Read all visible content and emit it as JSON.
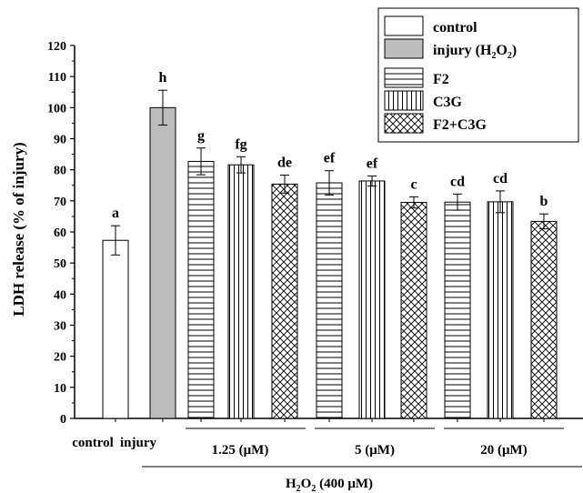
{
  "chart_data": {
    "type": "bar",
    "ylabel": "LDH release (% of injury)",
    "ylim": [
      0,
      120
    ],
    "yticks": [
      0,
      10,
      20,
      30,
      40,
      50,
      60,
      70,
      80,
      90,
      100,
      110,
      120
    ],
    "series_legend": [
      {
        "name": "control",
        "pattern": "none",
        "fill": "#ffffff"
      },
      {
        "name": "injury",
        "sub": "2",
        "name_suffix_open": " (H",
        "name_suffix_mid": "O",
        "name_suffix_close": ")",
        "pattern": "solid",
        "fill": "#bdbdbd"
      },
      {
        "name": "F2",
        "pattern": "horizontal",
        "fill": "#ffffff"
      },
      {
        "name": "C3G",
        "pattern": "vertical",
        "fill": "#ffffff"
      },
      {
        "name": "F2+C3G",
        "pattern": "crosshatch",
        "fill": "#ffffff"
      }
    ],
    "bars": [
      {
        "group": "control",
        "series": "control",
        "value": 57.3,
        "error": 4.7,
        "letter": "a"
      },
      {
        "group": "injury",
        "series": "injury",
        "value": 100,
        "error": 5.6,
        "letter": "h"
      },
      {
        "group": "1.25",
        "series": "F2",
        "value": 82.7,
        "error": 4.3,
        "letter": "g"
      },
      {
        "group": "1.25",
        "series": "C3G",
        "value": 81.6,
        "error": 2.6,
        "letter": "fg"
      },
      {
        "group": "1.25",
        "series": "F2+C3G",
        "value": 75.4,
        "error": 2.9,
        "letter": "de"
      },
      {
        "group": "5",
        "series": "F2",
        "value": 75.8,
        "error": 3.9,
        "letter": "ef"
      },
      {
        "group": "5",
        "series": "C3G",
        "value": 76.4,
        "error": 1.6,
        "letter": "ef"
      },
      {
        "group": "5",
        "series": "F2+C3G",
        "value": 69.5,
        "error": 1.8,
        "letter": "c"
      },
      {
        "group": "20",
        "series": "F2",
        "value": 69.6,
        "error": 2.6,
        "letter": "cd"
      },
      {
        "group": "20",
        "series": "C3G",
        "value": 69.7,
        "error": 3.5,
        "letter": "cd"
      },
      {
        "group": "20",
        "series": "F2+C3G",
        "value": 63.4,
        "error": 2.4,
        "letter": "b"
      }
    ],
    "x_group_labels": {
      "control": "control",
      "injury": "injury",
      "dose_1": "1.25 (μM)",
      "dose_2": "5 (μM)",
      "dose_3": "20 (μM)"
    },
    "xlabel_parts": {
      "h": "H",
      "sub1": "2",
      "o": "O",
      "sub2": "2",
      "rest": " (400 μM)"
    },
    "legend_position": "top-right"
  }
}
